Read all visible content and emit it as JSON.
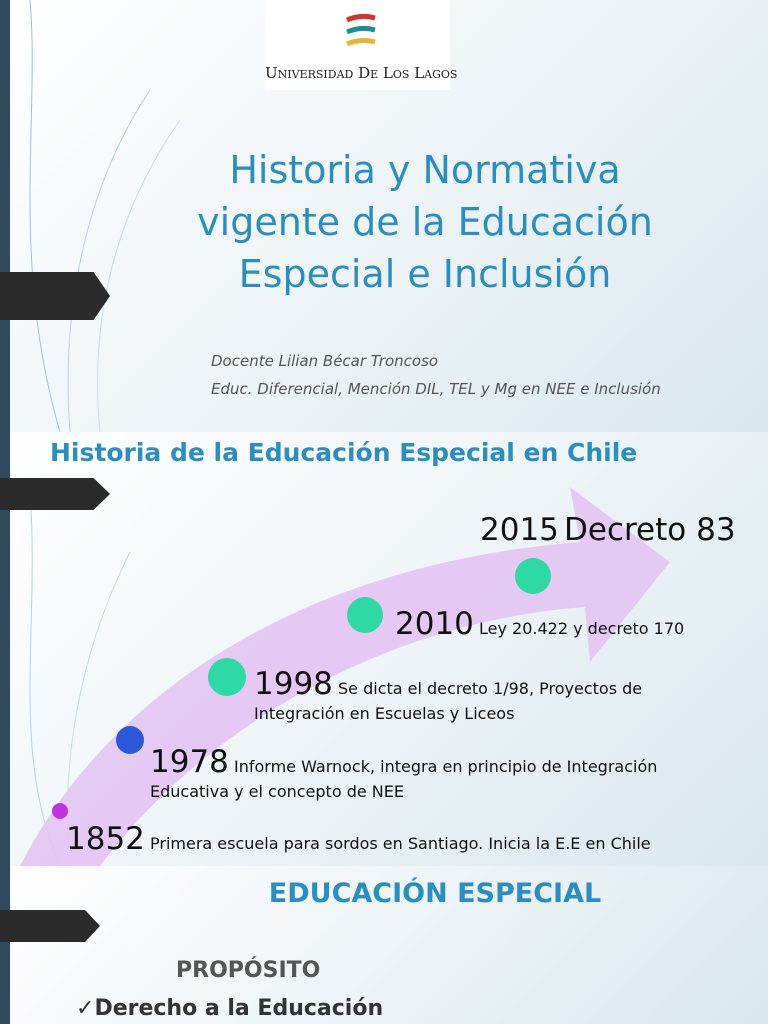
{
  "slide1": {
    "logo_text": "Universidad De Los Lagos",
    "title_lines": [
      "Historia y Normativa",
      "vigente de la Educación",
      "Especial e Inclusión"
    ],
    "author": "Docente Lilian Bécar Troncoso",
    "credentials": "Educ. Diferencial, Mención DIL, TEL y Mg en NEE e Inclusión"
  },
  "slide2": {
    "title": "Historia de la Educación Especial en Chile",
    "events": [
      {
        "year": "1852",
        "text": "Primera escuela para sordos en Santiago. Inicia la E.E en Chile"
      },
      {
        "year": "1978",
        "text": "Informe Warnock, integra en principio de Integración Educativa  y el concepto de NEE"
      },
      {
        "year": "1998",
        "text": "Se dicta el decreto 1/98, Proyectos de Integración en Escuelas y Liceos"
      },
      {
        "year": "2010",
        "text": "Ley 20.422 y decreto 170"
      },
      {
        "year": "2015",
        "text": "Decreto 83"
      }
    ]
  },
  "slide3": {
    "title": "EDUCACIÓN ESPECIAL",
    "subtitle": "PROPÓSITO",
    "items": [
      "Derecho a la Educación"
    ]
  }
}
